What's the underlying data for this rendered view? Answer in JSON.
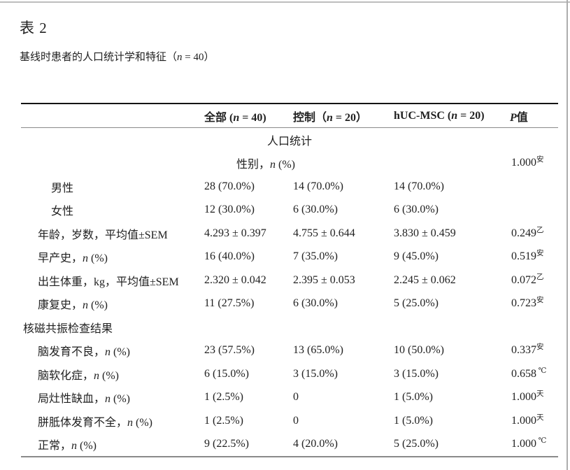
{
  "doc": {
    "title": "表 2",
    "subtitle": {
      "pre": "基线时患者的人口统计学和特征（",
      "it": "n",
      "post": " = 40）"
    }
  },
  "colors": {
    "text": "#212121",
    "table_top_border": "#141414",
    "table_gray_border": "#8a8a8a",
    "page_edge": "#bdbdbd"
  },
  "table": {
    "columns": {
      "all": {
        "pre": "全部 (",
        "it": "n",
        "post": " = 40)"
      },
      "control": {
        "pre": "控制（",
        "it": "n",
        "post": " = 20）"
      },
      "huc": {
        "pre": "hUC-MSC (",
        "it": "n",
        "post": " = 20)"
      },
      "p": {
        "pre": "",
        "it": "P",
        "post": "值"
      }
    },
    "rows": [
      {
        "kind": "center-all",
        "label": {
          "pre": "人口统计",
          "it": "",
          "post": ""
        }
      },
      {
        "kind": "center-merged",
        "label": {
          "pre": "性别，",
          "it": "n",
          "post": " (%)"
        },
        "p": "1.000",
        "p_sup": "安"
      },
      {
        "kind": "item",
        "indent": 43,
        "label": {
          "pre": "男性",
          "it": "",
          "post": ""
        },
        "values": [
          "28 (70.0%)",
          "14 (70.0%)",
          "14 (70.0%)"
        ]
      },
      {
        "kind": "item",
        "indent": 43,
        "label": {
          "pre": "女性",
          "it": "",
          "post": ""
        },
        "values": [
          "12 (30.0%)",
          "6 (30.0%)",
          "6 (30.0%)"
        ]
      },
      {
        "kind": "item",
        "indent": 24,
        "label": {
          "pre": "年龄，岁数，平均值±SEM",
          "it": "",
          "post": ""
        },
        "values": [
          "4.293 ± 0.397",
          "4.755 ± 0.644",
          "3.830 ± 0.459"
        ],
        "p": "0.249",
        "p_sup": "乙"
      },
      {
        "kind": "item",
        "indent": 24,
        "label": {
          "pre": "早产史，",
          "it": "n",
          "post": " (%)"
        },
        "values": [
          "16 (40.0%)",
          "7 (35.0%)",
          "9 (45.0%)"
        ],
        "p": "0.519",
        "p_sup": "安"
      },
      {
        "kind": "item",
        "indent": 24,
        "label": {
          "pre": "出生体重，kg，平均值±SEM",
          "it": "",
          "post": ""
        },
        "values": [
          "2.320 ± 0.042",
          "2.395 ± 0.053",
          "2.245 ± 0.062"
        ],
        "p": "0.072",
        "p_sup": "乙"
      },
      {
        "kind": "item",
        "indent": 24,
        "label": {
          "pre": "康复史，",
          "it": "n",
          "post": " (%)"
        },
        "values": [
          "11 (27.5%)",
          "6 (30.0%)",
          "5 (25.0%)"
        ],
        "p": "0.723",
        "p_sup": "安"
      },
      {
        "kind": "item",
        "indent": 3,
        "label": {
          "pre": "核磁共振检查结果",
          "it": "",
          "post": ""
        }
      },
      {
        "kind": "item",
        "indent": 24,
        "label": {
          "pre": "脑发育不良，",
          "it": "n",
          "post": " (%)"
        },
        "values": [
          "23 (57.5%)",
          "13 (65.0%)",
          "10 (50.0%)"
        ],
        "p": "0.337",
        "p_sup": "安"
      },
      {
        "kind": "item",
        "indent": 24,
        "label": {
          "pre": "脑软化症，",
          "it": "n",
          "post": " (%)"
        },
        "values": [
          "6 (15.0%)",
          "3 (15.0%)",
          "3 (15.0%)"
        ],
        "p": "0.658",
        "p_sup": " ℃"
      },
      {
        "kind": "item",
        "indent": 24,
        "label": {
          "pre": "局灶性缺血，",
          "it": "n",
          "post": " (%)"
        },
        "values": [
          "1 (2.5%)",
          "0",
          "1 (5.0%)"
        ],
        "p": "1.000",
        "p_sup": "天"
      },
      {
        "kind": "item",
        "indent": 24,
        "label": {
          "pre": "胼胝体发育不全，",
          "it": "n",
          "post": " (%)"
        },
        "values": [
          "1 (2.5%)",
          "0",
          "1 (5.0%)"
        ],
        "p": "1.000",
        "p_sup": "天"
      },
      {
        "kind": "item",
        "indent": 24,
        "label": {
          "pre": "正常，",
          "it": "n",
          "post": " (%)"
        },
        "values": [
          "9 (22.5%)",
          "4 (20.0%)",
          "5 (25.0%)"
        ],
        "p": "1.000",
        "p_sup": " ℃"
      }
    ]
  }
}
